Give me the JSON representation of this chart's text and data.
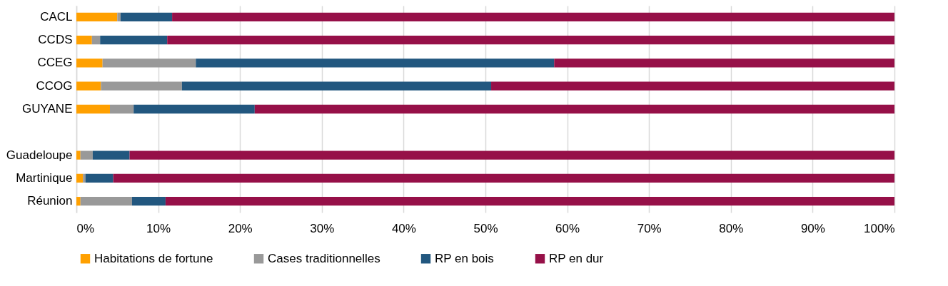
{
  "chart_data": {
    "type": "bar",
    "orientation": "horizontal",
    "stacked": true,
    "categories": [
      "CACL",
      "CCDS",
      "CCEG",
      "CCOG",
      "GUYANE",
      null,
      "Guadeloupe",
      "Martinique",
      "Réunion"
    ],
    "series": [
      {
        "name": "Habitations de fortune",
        "color": "#ffa000",
        "values": [
          5.0,
          1.9,
          3.2,
          3.0,
          4.1,
          null,
          0.5,
          0.8,
          0.5
        ]
      },
      {
        "name": "Cases traditionnelles",
        "color": "#999999",
        "values": [
          0.4,
          1.0,
          11.4,
          9.9,
          2.9,
          null,
          1.5,
          0.3,
          6.3
        ]
      },
      {
        "name": "RP en bois",
        "color": "#22577f",
        "values": [
          6.3,
          8.2,
          43.8,
          37.8,
          14.8,
          null,
          4.5,
          3.4,
          4.1
        ]
      },
      {
        "name": "RP en dur",
        "color": "#961048",
        "values": [
          88.3,
          88.9,
          41.6,
          49.3,
          78.2,
          null,
          93.5,
          95.5,
          89.1
        ]
      }
    ],
    "xlim": [
      0,
      100
    ],
    "xticks": [
      {
        "value": 0,
        "label": "0%"
      },
      {
        "value": 10,
        "label": "10%"
      },
      {
        "value": 20,
        "label": "20%"
      },
      {
        "value": 30,
        "label": "30%"
      },
      {
        "value": 40,
        "label": "40%"
      },
      {
        "value": 50,
        "label": "50%"
      },
      {
        "value": 60,
        "label": "60%"
      },
      {
        "value": 70,
        "label": "70%"
      },
      {
        "value": 80,
        "label": "80%"
      },
      {
        "value": 90,
        "label": "90%"
      },
      {
        "value": 100,
        "label": "100%"
      }
    ],
    "grid": "x",
    "legend": "bottom"
  }
}
